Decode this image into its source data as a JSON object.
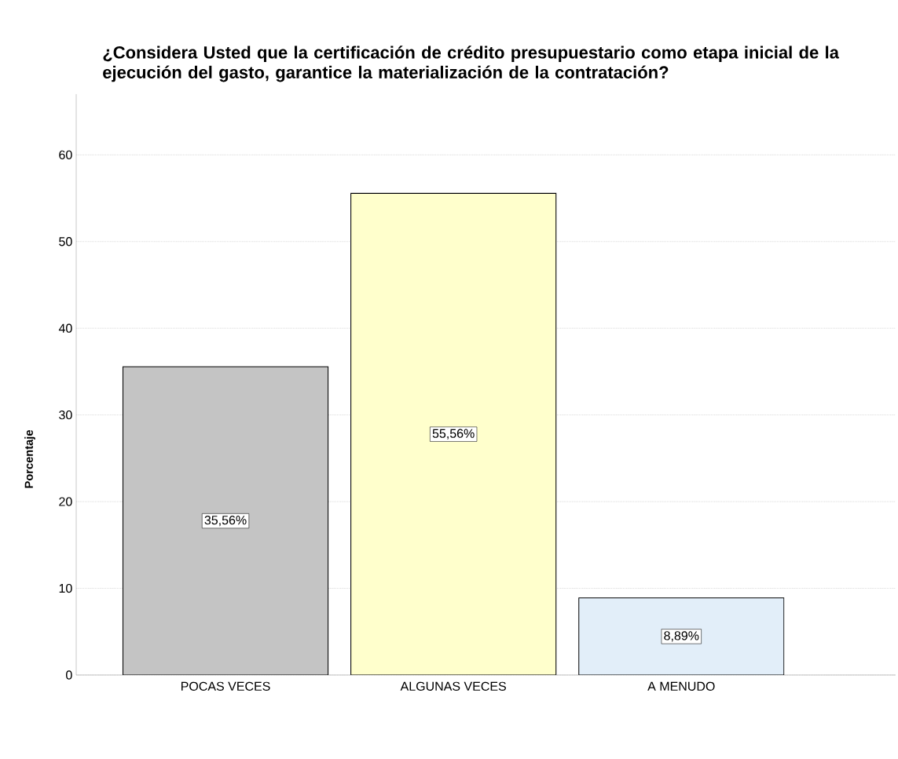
{
  "chart_data": {
    "type": "bar",
    "title": "¿Considera Usted que la certificación de crédito presupuestario como etapa inicial de la ejecución del gasto, garantice la materialización de la contratación?",
    "ylabel": "Porcentaje",
    "categories": [
      "POCAS VECES",
      "ALGUNAS VECES",
      "A MENUDO"
    ],
    "values": [
      35.56,
      55.56,
      8.89
    ],
    "value_labels": [
      "35,56%",
      "55,56%",
      "8,89%"
    ],
    "colors": [
      "#c4c4c4",
      "#ffffcc",
      "#e2eef9"
    ],
    "ylim": [
      0,
      67
    ],
    "yticks": [
      0,
      10,
      20,
      30,
      40,
      50,
      60
    ],
    "grid": "y"
  }
}
